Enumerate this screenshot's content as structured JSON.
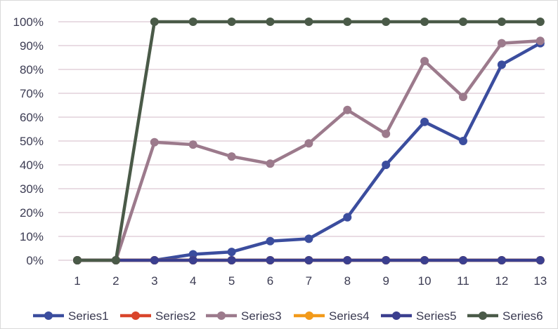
{
  "chart_data": {
    "type": "line",
    "title": "",
    "xlabel": "",
    "ylabel": "",
    "x": [
      1,
      2,
      3,
      4,
      5,
      6,
      7,
      8,
      9,
      10,
      11,
      12,
      13
    ],
    "x_tick_labels": [
      "1",
      "2",
      "3",
      "4",
      "5",
      "6",
      "7",
      "8",
      "9",
      "10",
      "11",
      "12",
      "13"
    ],
    "ylim": [
      0,
      100
    ],
    "y_tick_values": [
      0,
      10,
      20,
      30,
      40,
      50,
      60,
      70,
      80,
      90,
      100
    ],
    "y_tick_labels": [
      "0%",
      "10%",
      "20%",
      "30%",
      "40%",
      "50%",
      "60%",
      "70%",
      "80%",
      "90%",
      "100%"
    ],
    "grid": "horizontal",
    "legend_position": "bottom",
    "series": [
      {
        "name": "Series1",
        "color": "#3B4D9E",
        "values": [
          0,
          0,
          0,
          2.5,
          3.5,
          8,
          9,
          18,
          40,
          58,
          50,
          82,
          91
        ]
      },
      {
        "name": "Series2",
        "color": "#D9452B",
        "values": [
          0,
          0,
          0,
          0,
          0,
          0,
          0,
          0,
          0,
          0,
          0,
          0,
          0
        ]
      },
      {
        "name": "Series3",
        "color": "#9C7A8C",
        "values": [
          0,
          0,
          49.5,
          48.5,
          43.5,
          40.5,
          49,
          63,
          53,
          83.5,
          68.5,
          91,
          92
        ]
      },
      {
        "name": "Series4",
        "color": "#F29A1A",
        "values": [
          0,
          0,
          0,
          0,
          0,
          0,
          0,
          0,
          0,
          0,
          0,
          0,
          0
        ]
      },
      {
        "name": "Series5",
        "color": "#3B3F8F",
        "values": [
          0,
          0,
          0,
          0,
          0,
          0,
          0,
          0,
          0,
          0,
          0,
          0,
          0
        ]
      },
      {
        "name": "Series6",
        "color": "#4A5A48",
        "values": [
          0,
          0,
          100,
          100,
          100,
          100,
          100,
          100,
          100,
          100,
          100,
          100,
          100
        ]
      }
    ]
  }
}
